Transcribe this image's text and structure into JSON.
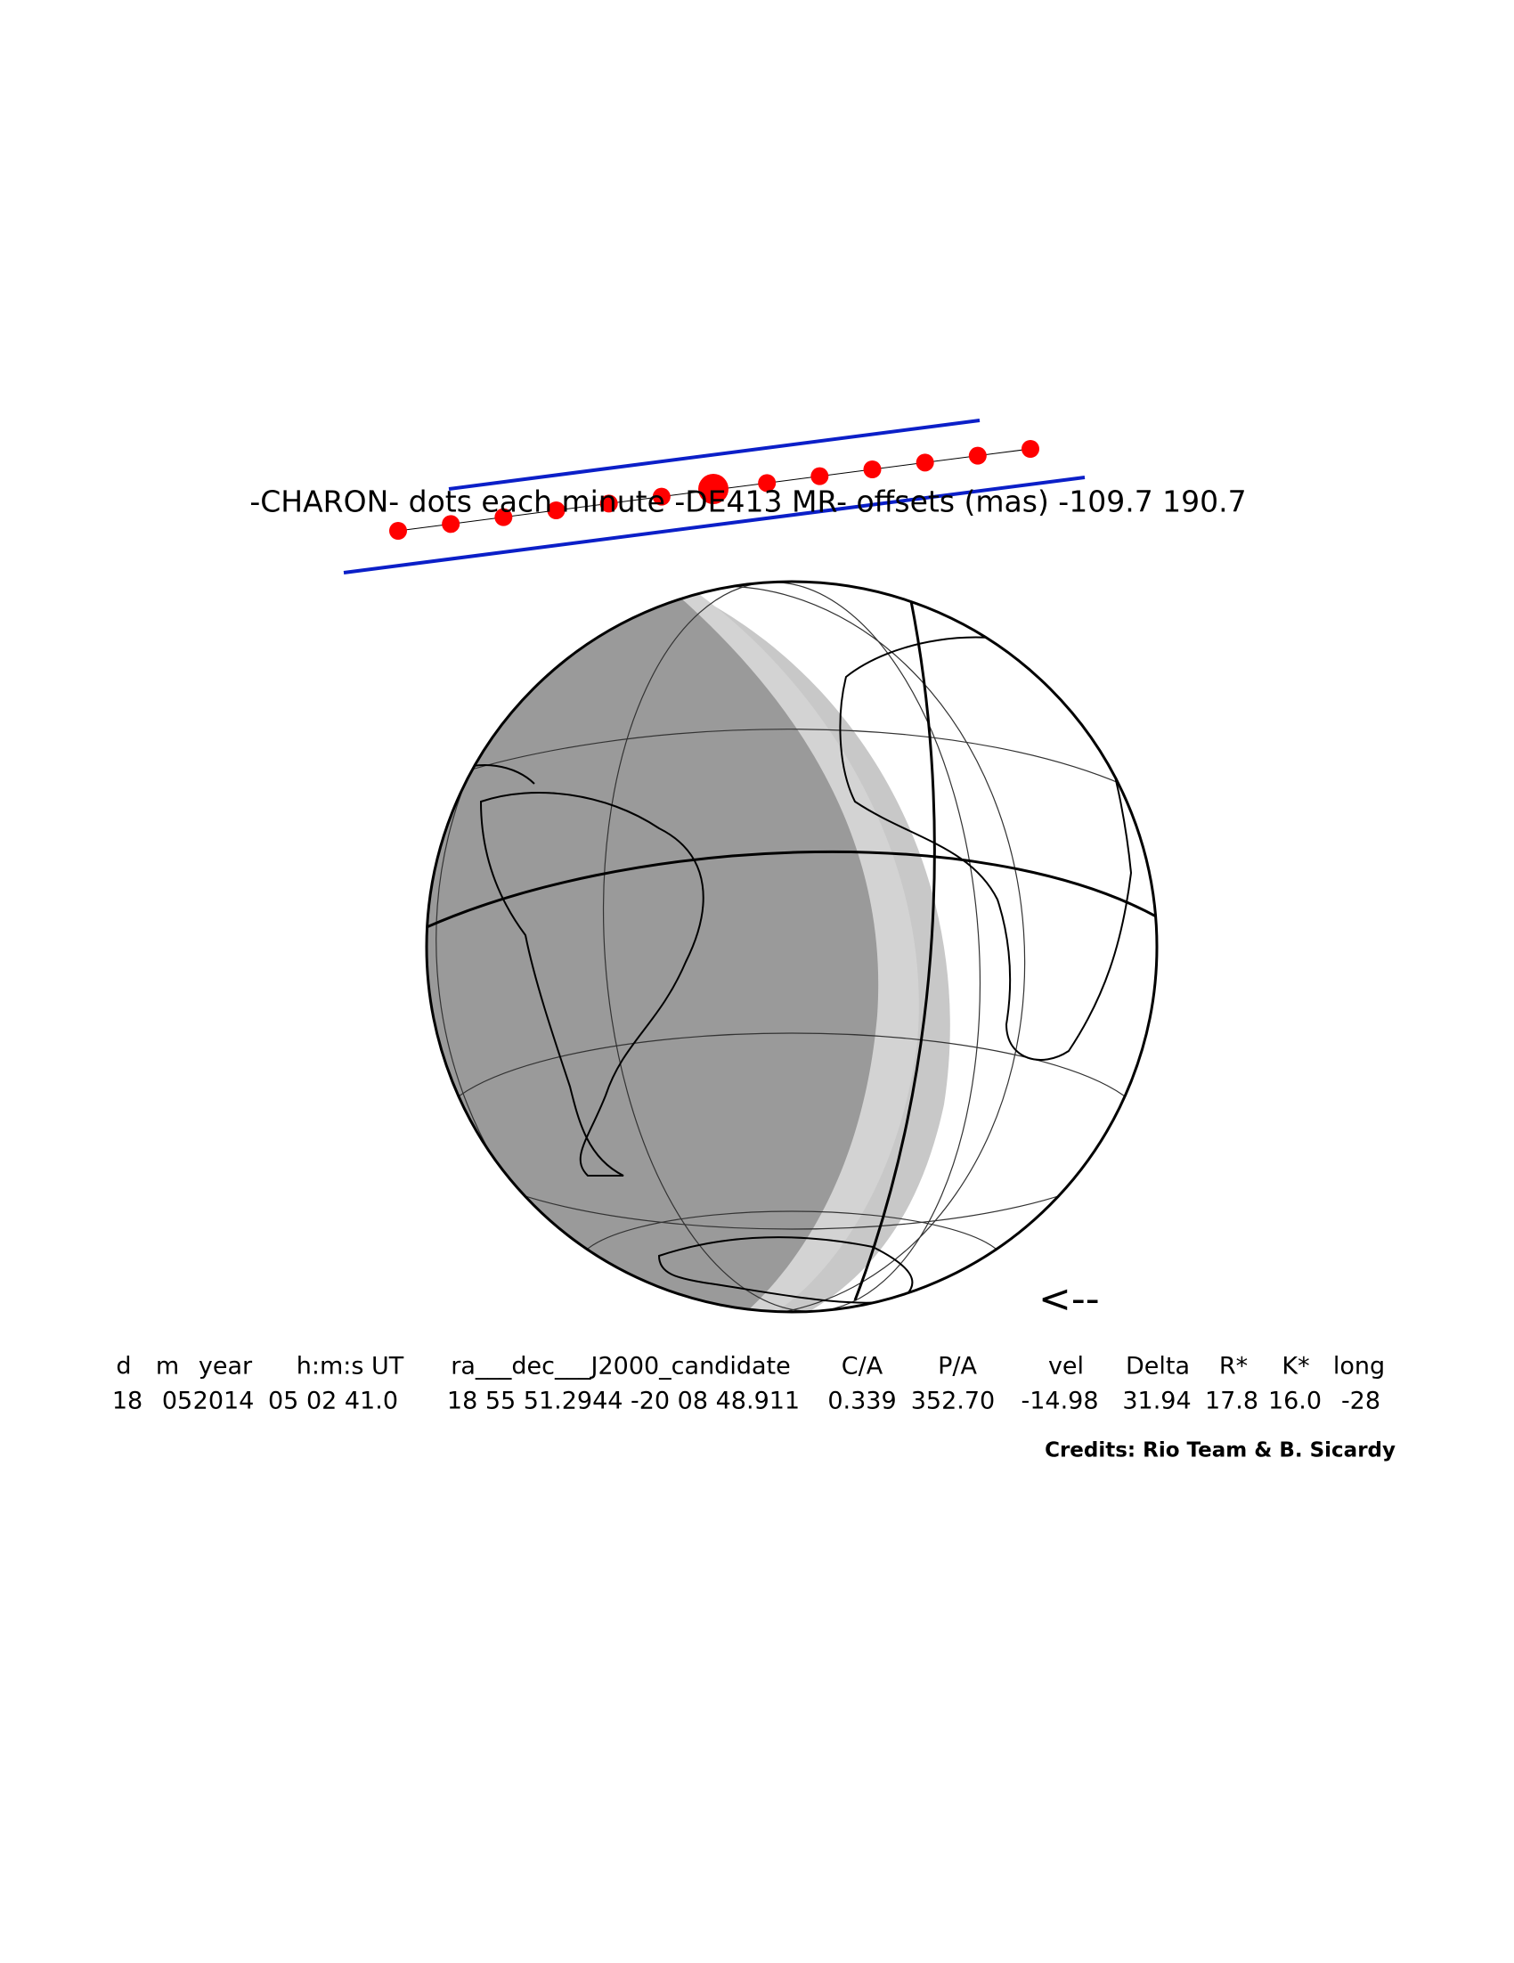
{
  "title": "-CHARON- dots each minute -DE413 MR- offsets (mas) -109.7   190.7",
  "arrow": "<--",
  "table": {
    "header": [
      "d",
      "m",
      "year",
      "h:m:s UT",
      "ra___dec___J2000_candidate",
      "C/A",
      "P/A",
      "vel",
      "Delta",
      "R*",
      "K*",
      "long"
    ],
    "rows": [
      [
        "18",
        "05",
        "2014",
        "05 02 41.0",
        "18 55 51.2944 -20 08 48.911",
        "0.339",
        "352.70",
        "-14.98",
        "31.94",
        "17.8",
        "16.0",
        "-28"
      ]
    ]
  },
  "credits": "Credits: Rio Team & B. Sicardy"
}
